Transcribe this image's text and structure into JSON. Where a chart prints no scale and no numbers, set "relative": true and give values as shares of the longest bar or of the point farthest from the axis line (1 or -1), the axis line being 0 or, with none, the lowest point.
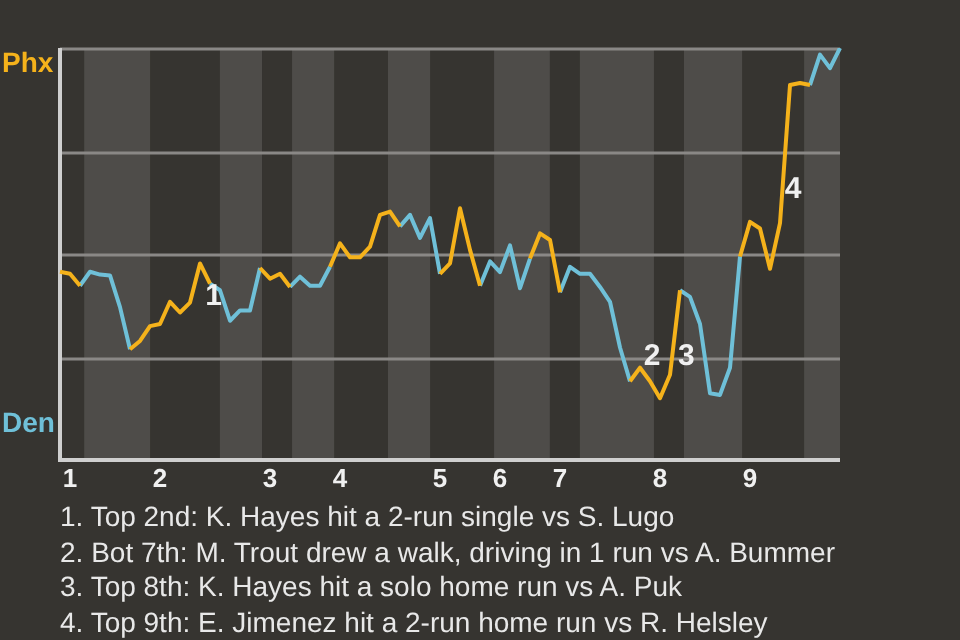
{
  "chart_data": {
    "type": "line",
    "relative": true,
    "marker": "none",
    "line_style": "solid",
    "grid": "y",
    "legend": false,
    "categories": [
      null,
      "1",
      null,
      null,
      null,
      null,
      null,
      null,
      null,
      null,
      "2",
      null,
      null,
      null,
      null,
      null,
      null,
      null,
      null,
      null,
      null,
      "3",
      null,
      null,
      null,
      null,
      null,
      null,
      "4",
      null,
      null,
      null,
      null,
      null,
      null,
      null,
      null,
      null,
      "5",
      null,
      null,
      null,
      null,
      null,
      "6",
      null,
      null,
      null,
      null,
      null,
      "7",
      null,
      null,
      null,
      null,
      null,
      null,
      null,
      null,
      null,
      "8",
      null,
      null,
      null,
      null,
      null,
      null,
      null,
      null,
      "9",
      null,
      null,
      null,
      null,
      null,
      null,
      null,
      null,
      null
    ],
    "series": [
      {
        "name": "Phx",
        "color": "#f5b21b",
        "values": [
          0.457,
          0.452,
          0.423,
          null,
          null,
          null,
          null,
          0.269,
          0.289,
          0.325,
          0.33,
          0.384,
          0.358,
          0.382,
          0.477,
          0.428,
          null,
          null,
          null,
          null,
          0.466,
          0.44,
          0.452,
          0.42,
          null,
          null,
          null,
          0.469,
          0.526,
          0.492,
          0.492,
          0.518,
          0.595,
          0.603,
          0.567,
          null,
          null,
          null,
          0.452,
          0.477,
          0.611,
          0.51,
          0.423,
          null,
          null,
          null,
          null,
          0.489,
          0.55,
          0.534,
          0.407,
          null,
          null,
          null,
          null,
          null,
          null,
          0.191,
          0.224,
          0.191,
          0.15,
          0.207,
          0.412,
          null,
          null,
          null,
          null,
          null,
          0.494,
          0.578,
          0.562,
          0.464,
          0.575,
          0.91,
          0.915,
          0.91,
          null,
          null,
          null
        ]
      },
      {
        "name": "Den",
        "color": "#6fc0d8",
        "values": [
          null,
          null,
          0.423,
          0.457,
          0.45,
          0.448,
          0.371,
          0.269,
          null,
          null,
          null,
          null,
          null,
          null,
          null,
          0.428,
          0.412,
          0.338,
          0.363,
          0.363,
          0.466,
          null,
          null,
          0.42,
          0.445,
          0.423,
          0.423,
          0.469,
          null,
          null,
          null,
          null,
          null,
          null,
          0.567,
          0.595,
          0.539,
          0.587,
          0.452,
          null,
          null,
          null,
          0.423,
          0.482,
          0.456,
          0.521,
          0.417,
          0.489,
          null,
          null,
          0.407,
          0.469,
          0.452,
          0.452,
          0.42,
          0.384,
          0.273,
          0.191,
          null,
          null,
          null,
          null,
          0.412,
          0.396,
          0.33,
          0.162,
          0.158,
          0.224,
          0.494,
          null,
          null,
          null,
          null,
          null,
          null,
          0.91,
          0.984,
          0.951,
          1
        ]
      }
    ],
    "annotations": [
      "1",
      "2",
      "3",
      "4",
      "1. Top 2nd: K. Hayes hit a 2-run single vs S. Lugo",
      "2. Bot 7th: M. Trout drew a walk, driving in 1 run vs A. Bummer",
      "3. Top 8th: K. Hayes hit a solo home run vs A. Puk",
      "4. Top 9th: E. Jimenez hit a 2-run home run vs R. Helsley"
    ]
  }
}
